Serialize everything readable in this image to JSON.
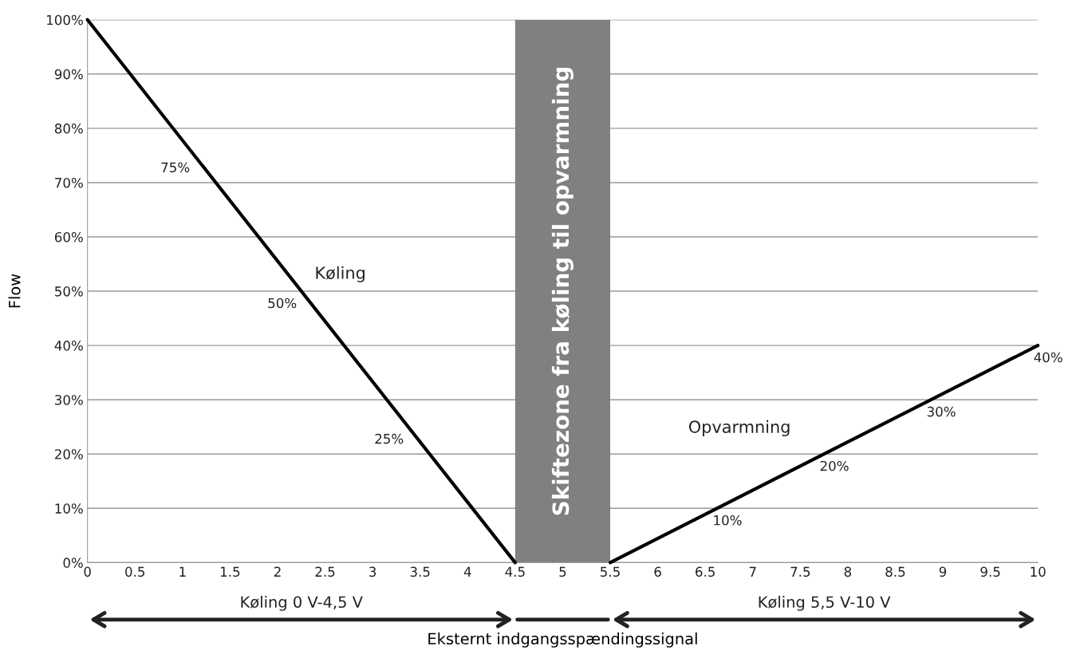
{
  "chart_data": {
    "type": "line",
    "xlabel": "Eksternt indgangsspændingssignal",
    "ylabel": "Flow",
    "series": [
      {
        "name": "Køling",
        "color": "#000000",
        "x": [
          0,
          4.5
        ],
        "values": [
          100,
          0
        ]
      },
      {
        "name": "Opvarmning",
        "color": "#000000",
        "x": [
          5.5,
          10
        ],
        "values": [
          0,
          40
        ]
      }
    ],
    "xlim": [
      0,
      10
    ],
    "xticks": [
      0,
      0.5,
      1,
      1.5,
      2,
      2.5,
      3,
      3.5,
      4,
      4.5,
      5,
      5.5,
      6,
      6.5,
      7,
      7.5,
      8,
      8.5,
      9,
      9.5,
      10
    ],
    "ylim": [
      0,
      100
    ],
    "yticks": [
      {
        "value": 0,
        "label": "0%"
      },
      {
        "value": 10,
        "label": "10%"
      },
      {
        "value": 20,
        "label": "20%"
      },
      {
        "value": 30,
        "label": "30%"
      },
      {
        "value": 40,
        "label": "40%"
      },
      {
        "value": 50,
        "label": "50%"
      },
      {
        "value": 60,
        "label": "60%"
      },
      {
        "value": 70,
        "label": "70%"
      },
      {
        "value": 80,
        "label": "80%"
      },
      {
        "value": 90,
        "label": "90%"
      },
      {
        "value": 100,
        "label": "100%"
      }
    ],
    "bands": [
      {
        "axis": "x",
        "from": 4.5,
        "to": 5.5,
        "label": "Skiftezone fra køling til opvarmning",
        "color": "#808080"
      }
    ],
    "annotations": [
      {
        "text": "75%",
        "x": 1.125,
        "y": 75
      },
      {
        "text": "50%",
        "x": 2.25,
        "y": 50
      },
      {
        "text": "25%",
        "x": 3.375,
        "y": 25
      },
      {
        "text": "10%",
        "x": 6.625,
        "y": 10
      },
      {
        "text": "20%",
        "x": 7.75,
        "y": 20
      },
      {
        "text": "30%",
        "x": 8.875,
        "y": 30
      },
      {
        "text": "40%",
        "x": 10,
        "y": 40
      },
      "Køling 0 V-4,5 V",
      "Køling 5,5 V-10 V"
    ],
    "grid": "y",
    "legend": false,
    "line_style": "solid",
    "marker": "none"
  }
}
